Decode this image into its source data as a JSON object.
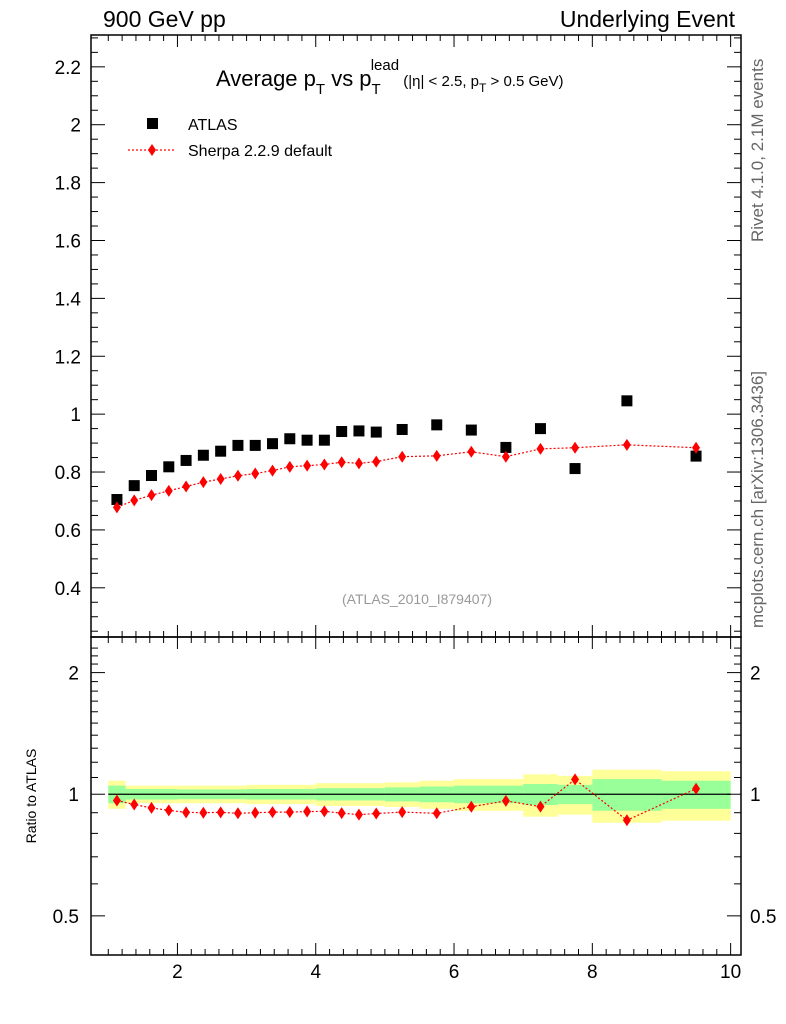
{
  "header": {
    "left": "900 GeV pp",
    "right": "Underlying Event"
  },
  "side_labels": {
    "version": "Rivet 4.1.0,  2.1M events",
    "source": "mcplots.cern.ch [arXiv:1306.3436]"
  },
  "chart_data": {
    "type": "scatter",
    "title": {
      "main": "Average p",
      "sub": "T",
      "vs": " vs p",
      "sup": "lead",
      "cut1": " (|η| < 2.5, p",
      "cut2": " > 0.5 GeV)"
    },
    "analysis_tag": "(ATLAS_2010_I879407)",
    "legend": {
      "placement": "top-left",
      "entries": [
        "ATLAS",
        "Sherpa 2.2.9 default"
      ]
    },
    "colors": {
      "data": "#000000",
      "mc": "#ff0000",
      "band_inner": "#99ff99",
      "band_outer": "#ffff99"
    },
    "main": {
      "ylim": [
        0.23,
        2.31
      ],
      "yticks": [
        0.4,
        0.6,
        0.8,
        1,
        1.2,
        1.4,
        1.6,
        1.8,
        2,
        2.2
      ],
      "yticklabels": [
        "0.4",
        "0.6",
        "0.8",
        "1",
        "1.2",
        "1.4",
        "1.6",
        "1.8",
        "2",
        "2.2"
      ]
    },
    "ratio": {
      "ylabel": "Ratio to ATLAS",
      "yrange": [
        0.4,
        2.45
      ],
      "yticks": [
        0.5,
        1,
        2
      ],
      "yticklabels": [
        "0.5",
        "1",
        "2"
      ]
    },
    "xlim": [
      0.75,
      10.15
    ],
    "xticks": [
      2,
      4,
      6,
      8,
      10
    ],
    "xticklabels": [
      "2",
      "4",
      "6",
      "8",
      "10"
    ],
    "series": [
      {
        "name": "ATLAS",
        "x": [
          1.125,
          1.375,
          1.625,
          1.875,
          2.125,
          2.375,
          2.625,
          2.875,
          3.125,
          3.375,
          3.625,
          3.875,
          4.125,
          4.375,
          4.625,
          4.875,
          5.25,
          5.75,
          6.25,
          6.75,
          7.25,
          7.75,
          8.5,
          9.5
        ],
        "y": [
          0.705,
          0.753,
          0.788,
          0.818,
          0.84,
          0.858,
          0.872,
          0.892,
          0.892,
          0.898,
          0.915,
          0.91,
          0.91,
          0.94,
          0.942,
          0.938,
          0.947,
          0.963,
          0.945,
          0.885,
          0.95,
          0.812,
          1.046,
          0.855
        ]
      },
      {
        "name": "Sherpa 2.2.9 default",
        "x": [
          1.125,
          1.375,
          1.625,
          1.875,
          2.125,
          2.375,
          2.625,
          2.875,
          3.125,
          3.375,
          3.625,
          3.875,
          4.125,
          4.375,
          4.625,
          4.875,
          5.25,
          5.75,
          6.25,
          6.75,
          7.25,
          7.75,
          8.5,
          9.5
        ],
        "y": [
          0.678,
          0.702,
          0.72,
          0.735,
          0.75,
          0.765,
          0.776,
          0.787,
          0.795,
          0.805,
          0.818,
          0.822,
          0.826,
          0.834,
          0.83,
          0.836,
          0.853,
          0.856,
          0.87,
          0.853,
          0.88,
          0.884,
          0.894,
          0.884
        ]
      }
    ],
    "ratio_series": {
      "x": [
        1.125,
        1.375,
        1.625,
        1.875,
        2.125,
        2.375,
        2.625,
        2.875,
        3.125,
        3.375,
        3.625,
        3.875,
        4.125,
        4.375,
        4.625,
        4.875,
        5.25,
        5.75,
        6.25,
        6.75,
        7.25,
        7.75,
        8.5,
        9.5
      ],
      "y": [
        0.965,
        0.943,
        0.925,
        0.912,
        0.902,
        0.9,
        0.902,
        0.897,
        0.9,
        0.903,
        0.903,
        0.906,
        0.907,
        0.898,
        0.89,
        0.896,
        0.903,
        0.897,
        0.931,
        0.963,
        0.932,
        1.088,
        0.862,
        1.032
      ]
    },
    "ratio_bands": [
      {
        "x0": 1.0,
        "x1": 1.25,
        "inner": 0.05,
        "outer": 0.08
      },
      {
        "x0": 1.25,
        "x1": 2.0,
        "inner": 0.03,
        "outer": 0.05
      },
      {
        "x0": 2.0,
        "x1": 3.0,
        "inner": 0.028,
        "outer": 0.05
      },
      {
        "x0": 3.0,
        "x1": 4.0,
        "inner": 0.03,
        "outer": 0.055
      },
      {
        "x0": 4.0,
        "x1": 5.0,
        "inner": 0.035,
        "outer": 0.065
      },
      {
        "x0": 5.0,
        "x1": 5.5,
        "inner": 0.04,
        "outer": 0.07
      },
      {
        "x0": 5.5,
        "x1": 6.0,
        "inner": 0.045,
        "outer": 0.08
      },
      {
        "x0": 6.0,
        "x1": 7.0,
        "inner": 0.05,
        "outer": 0.09
      },
      {
        "x0": 7.0,
        "x1": 7.5,
        "inner": 0.06,
        "outer": 0.12
      },
      {
        "x0": 7.5,
        "x1": 8.0,
        "inner": 0.055,
        "outer": 0.11
      },
      {
        "x0": 8.0,
        "x1": 9.0,
        "inner": 0.09,
        "outer": 0.15
      },
      {
        "x0": 9.0,
        "x1": 10.0,
        "inner": 0.08,
        "outer": 0.14
      }
    ]
  }
}
